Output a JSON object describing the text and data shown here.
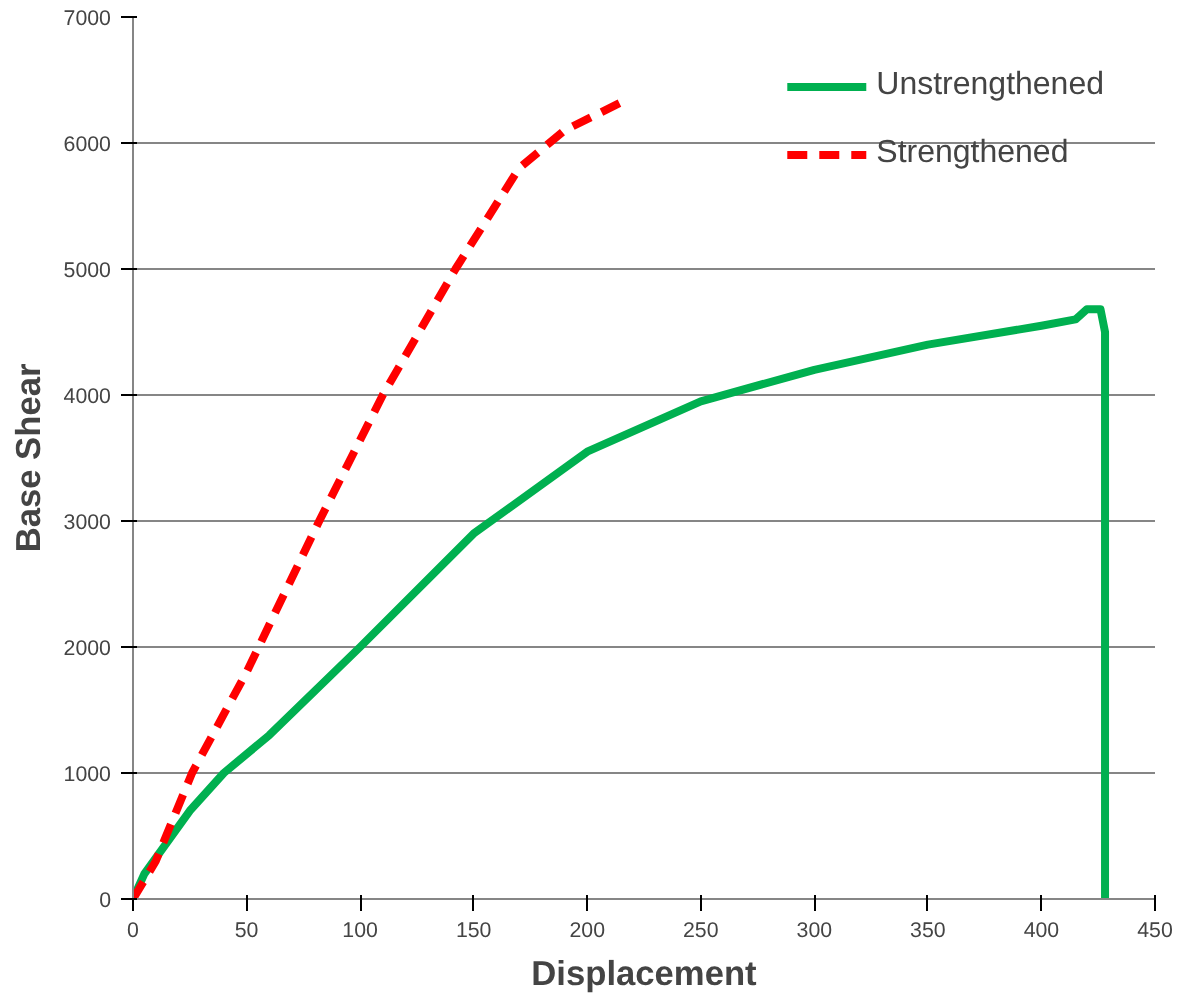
{
  "chart_data": {
    "type": "line",
    "xlabel": "Displacement",
    "ylabel": "Base Shear",
    "xlim": [
      0,
      450
    ],
    "ylim": [
      0,
      7000
    ],
    "xticks": [
      0,
      50,
      100,
      150,
      200,
      250,
      300,
      350,
      400,
      450
    ],
    "yticks": [
      0,
      1000,
      2000,
      3000,
      4000,
      5000,
      6000,
      7000
    ],
    "grid": "y",
    "legend": "top right",
    "marker": "none",
    "series": [
      {
        "name": "Unstrengthened",
        "color": "#00b050",
        "line_style": "solid",
        "x": [
          0,
          5,
          15,
          25,
          40,
          60,
          100,
          150,
          200,
          250,
          300,
          350,
          400,
          415,
          420,
          426,
          428,
          428
        ],
        "values": [
          0,
          200,
          450,
          700,
          1000,
          1300,
          2000,
          2900,
          3550,
          3950,
          4200,
          4400,
          4550,
          4600,
          4680,
          4680,
          4500,
          0
        ]
      },
      {
        "name": "Strengthened",
        "color": "#ff0000",
        "line_style": "dashed",
        "x": [
          0,
          10,
          26,
          50,
          82,
          110,
          142,
          170,
          190,
          218
        ],
        "values": [
          0,
          300,
          1000,
          1800,
          3000,
          4000,
          5000,
          5800,
          6100,
          6350
        ]
      }
    ]
  }
}
